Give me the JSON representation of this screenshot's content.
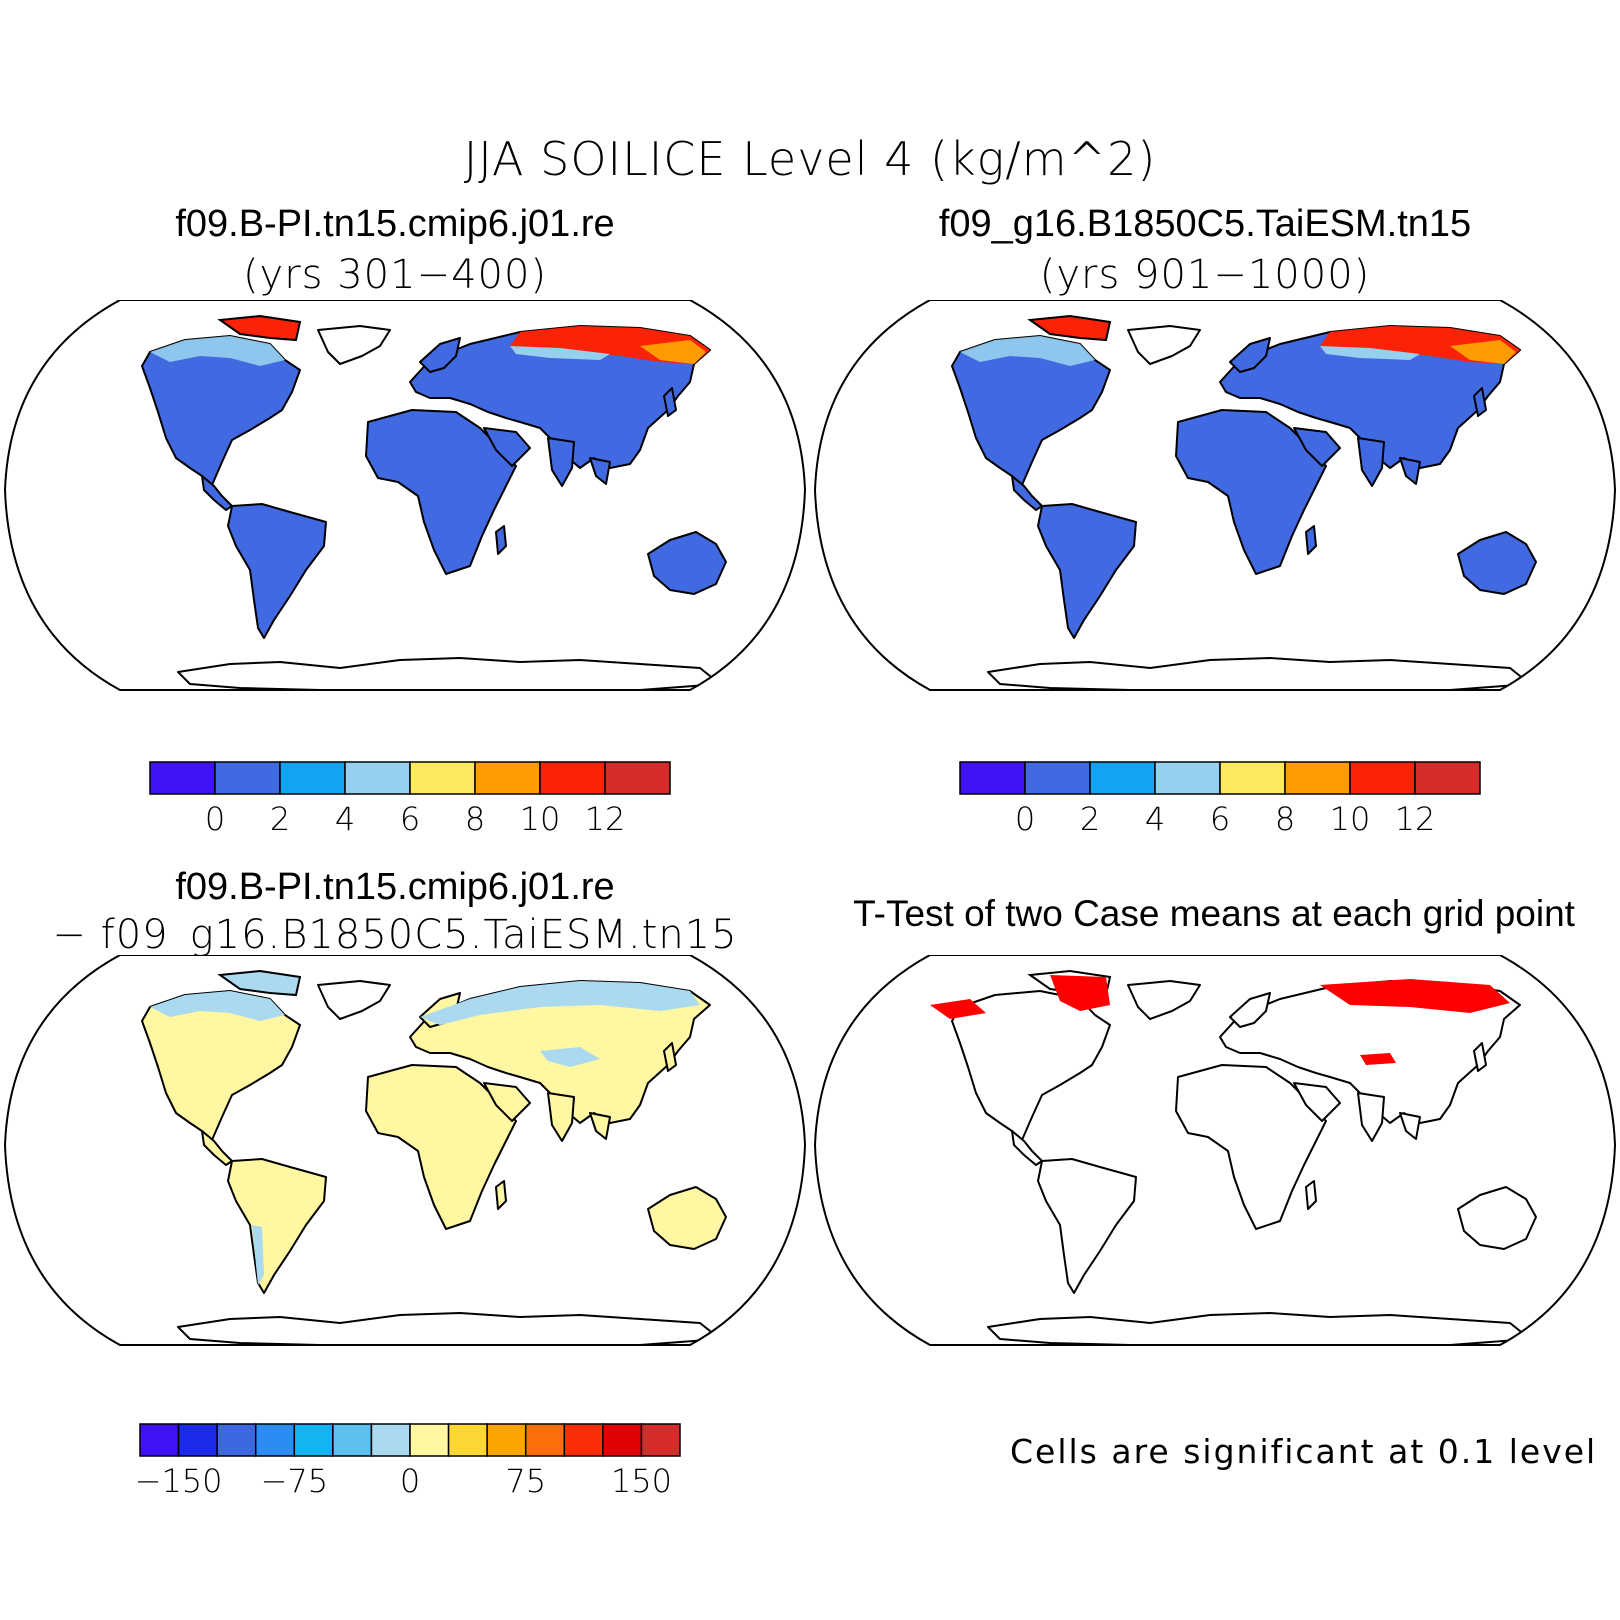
{
  "title": "JJA SOILICE Level 4 (kg/m^2)",
  "panels": [
    {
      "id": "case1",
      "title": "f09.B-PI.tn15.cmip6.j01.re",
      "subtitle": "(yrs 301−400)",
      "style": "abs"
    },
    {
      "id": "case2",
      "title": "f09_g16.B1850C5.TaiESM.tn15",
      "subtitle": "(yrs 901−1000)",
      "style": "abs"
    },
    {
      "id": "diff",
      "title": "f09.B-PI.tn15.cmip6.j01.re",
      "subtitle": "− f09_g16.B1850C5.TaiESM.tn15",
      "style": "diff"
    },
    {
      "id": "ttest",
      "title": "T-Test of two Case means at each grid point",
      "subtitle": "",
      "style": "ttest",
      "note": "Cells are significant at 0.1 level"
    }
  ],
  "colorbars": {
    "abs": {
      "colors": [
        "#3f13f5",
        "#4169e1",
        "#12a4f1",
        "#97d0ee",
        "#fde95e",
        "#fd9c00",
        "#fb2208",
        "#d42b2b"
      ],
      "labels": [
        "0",
        "2",
        "4",
        "6",
        "8",
        "10",
        "12"
      ]
    },
    "diff": {
      "colors": [
        "#3f13f5",
        "#1a2ce8",
        "#3d68e0",
        "#2c8cf5",
        "#12b4f2",
        "#5cc1ee",
        "#aad9f0",
        "#fff7a2",
        "#fdd733",
        "#fca500",
        "#fb6e08",
        "#fb2c08",
        "#e10205",
        "#d42b2b"
      ],
      "labels": [
        "−150",
        "−75",
        "0",
        "75",
        "150"
      ]
    }
  },
  "map_colors": {
    "abs_land": "#4169e1",
    "abs_high": "#fb2208",
    "abs_mid": "#fd9c00",
    "abs_low": "#97d0ee",
    "diff_land": "#fff7a2",
    "diff_cold": "#aad9f0",
    "signif": "#ff0000"
  }
}
